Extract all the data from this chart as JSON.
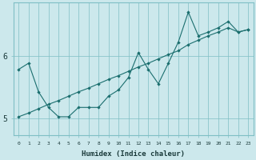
{
  "xlabel": "Humidex (Indice chaleur)",
  "bg_color": "#cce8ec",
  "grid_color": "#7fbfc5",
  "line_color": "#1a6e6e",
  "xlim_min": -0.5,
  "xlim_max": 23.5,
  "ylim_min": 4.72,
  "ylim_max": 6.85,
  "yticks": [
    5,
    6
  ],
  "xtick_labels": [
    "0",
    "1",
    "2",
    "3",
    "4",
    "5",
    "6",
    "7",
    "8",
    "9",
    "10",
    "11",
    "12",
    "13",
    "14",
    "15",
    "16",
    "17",
    "18",
    "19",
    "20",
    "21",
    "22",
    "23"
  ],
  "series1_x": [
    0,
    1,
    2,
    3,
    4,
    5,
    6,
    7,
    8,
    9,
    10,
    11,
    12,
    13,
    14,
    15,
    16,
    17,
    18,
    19,
    20,
    21,
    22,
    23
  ],
  "series1_y": [
    5.78,
    5.88,
    5.42,
    5.17,
    5.02,
    5.02,
    5.17,
    5.17,
    5.17,
    5.35,
    5.45,
    5.65,
    6.05,
    5.78,
    5.55,
    5.88,
    6.22,
    6.7,
    6.32,
    6.38,
    6.45,
    6.55,
    6.38,
    6.42
  ],
  "series2_x": [
    0,
    1,
    2,
    3,
    4,
    5,
    6,
    7,
    8,
    9,
    10,
    11,
    12,
    13,
    14,
    15,
    16,
    17,
    18,
    19,
    20,
    21,
    22,
    23
  ],
  "series2_y": [
    5.02,
    5.08,
    5.15,
    5.22,
    5.28,
    5.35,
    5.42,
    5.48,
    5.55,
    5.62,
    5.68,
    5.75,
    5.82,
    5.88,
    5.95,
    6.02,
    6.08,
    6.18,
    6.25,
    6.32,
    6.38,
    6.45,
    6.38,
    6.42
  ]
}
